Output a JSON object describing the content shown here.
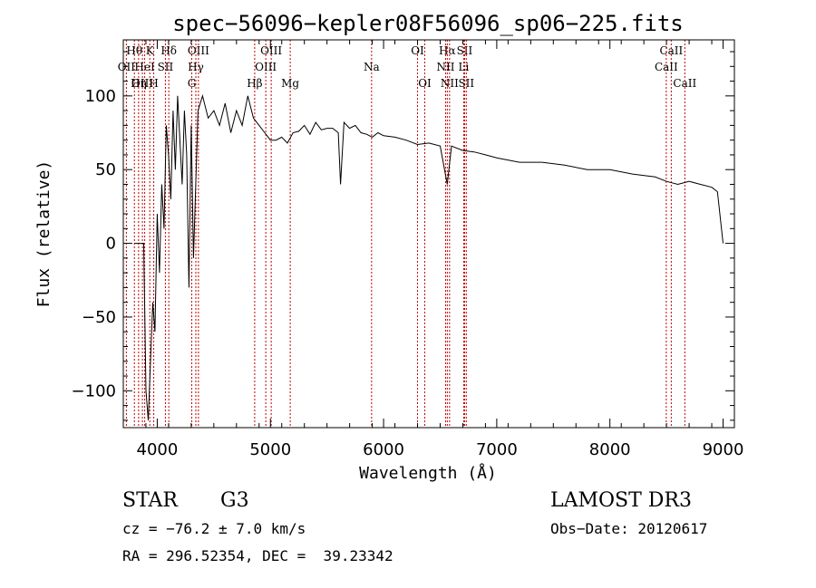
{
  "chart_data": {
    "type": "line",
    "title": "spec−56096−kepler08F56096_sp06−225.fits",
    "xlabel": "Wavelength (Å)",
    "ylabel": "Flux (relative)",
    "xlim": [
      3700,
      9100
    ],
    "ylim": [
      -125,
      138
    ],
    "xticks": [
      4000,
      5000,
      6000,
      7000,
      8000,
      9000
    ],
    "xtick_labels": [
      "4000",
      "5000",
      "6000",
      "7000",
      "8000",
      "9000"
    ],
    "yticks": [
      -100,
      -50,
      0,
      50,
      100
    ],
    "ytick_labels": [
      "−100",
      "−50",
      "0",
      "50",
      "100"
    ],
    "series": [
      {
        "name": "spectrum",
        "x": [
          3800,
          3850,
          3880,
          3900,
          3920,
          3940,
          3960,
          3980,
          4000,
          4020,
          4040,
          4060,
          4080,
          4100,
          4120,
          4140,
          4160,
          4180,
          4200,
          4220,
          4240,
          4260,
          4280,
          4300,
          4320,
          4340,
          4360,
          4400,
          4450,
          4500,
          4550,
          4600,
          4650,
          4700,
          4750,
          4800,
          4850,
          4900,
          4950,
          5000,
          5050,
          5100,
          5150,
          5200,
          5250,
          5300,
          5350,
          5400,
          5450,
          5500,
          5550,
          5600,
          5620,
          5650,
          5700,
          5750,
          5800,
          5850,
          5900,
          5950,
          6000,
          6100,
          6200,
          6300,
          6400,
          6500,
          6563,
          6600,
          6700,
          6800,
          6900,
          7000,
          7200,
          7400,
          7600,
          7800,
          8000,
          8200,
          8400,
          8500,
          8600,
          8700,
          8800,
          8900,
          8950,
          9000
        ],
        "values": [
          0,
          0,
          0,
          -100,
          -120,
          -80,
          -40,
          -60,
          20,
          -20,
          40,
          10,
          80,
          60,
          30,
          90,
          50,
          100,
          70,
          40,
          90,
          60,
          -30,
          80,
          -10,
          40,
          90,
          100,
          85,
          90,
          80,
          95,
          75,
          90,
          80,
          100,
          85,
          80,
          75,
          70,
          70,
          72,
          68,
          75,
          76,
          80,
          74,
          82,
          77,
          78,
          78,
          75,
          40,
          82,
          78,
          80,
          75,
          74,
          72,
          75,
          73,
          72,
          70,
          67,
          68,
          66,
          40,
          66,
          63,
          62,
          60,
          58,
          55,
          55,
          53,
          50,
          50,
          47,
          45,
          42,
          40,
          42,
          40,
          38,
          35,
          0
        ]
      }
    ],
    "lines": [
      {
        "label": "Hθ",
        "wavelength": 3798,
        "row": 1
      },
      {
        "label": "OII",
        "wavelength": 3727,
        "row": 2
      },
      {
        "label": "OIII",
        "wavelength": 3869,
        "row": 3
      },
      {
        "label": "K",
        "wavelength": 3934,
        "row": 1
      },
      {
        "label": "HeI",
        "wavelength": 3889,
        "row": 2
      },
      {
        "label": "Hη",
        "wavelength": 3835,
        "row": 3
      },
      {
        "label": "H",
        "wavelength": 3969,
        "row": 3
      },
      {
        "label": "SII",
        "wavelength": 4072,
        "row": 2
      },
      {
        "label": "Hδ",
        "wavelength": 4102,
        "row": 1
      },
      {
        "label": "OIII",
        "wavelength": 4364,
        "row": 1
      },
      {
        "label": "Hγ",
        "wavelength": 4341,
        "row": 2
      },
      {
        "label": "G",
        "wavelength": 4305,
        "row": 3
      },
      {
        "label": "OIII",
        "wavelength": 5007,
        "row": 1
      },
      {
        "label": "OIII",
        "wavelength": 4959,
        "row": 2
      },
      {
        "label": "Hβ",
        "wavelength": 4861,
        "row": 3
      },
      {
        "label": "Mg",
        "wavelength": 5175,
        "row": 3
      },
      {
        "label": "Na",
        "wavelength": 5894,
        "row": 2
      },
      {
        "label": "OI",
        "wavelength": 6300,
        "row": 1
      },
      {
        "label": "OI",
        "wavelength": 6364,
        "row": 3
      },
      {
        "label": "Hα",
        "wavelength": 6563,
        "row": 1
      },
      {
        "label": "SII",
        "wavelength": 6716,
        "row": 1
      },
      {
        "label": "NII",
        "wavelength": 6548,
        "row": 2
      },
      {
        "label": "Li",
        "wavelength": 6708,
        "row": 2
      },
      {
        "label": "NII",
        "wavelength": 6583,
        "row": 3
      },
      {
        "label": "SII",
        "wavelength": 6731,
        "row": 3
      },
      {
        "label": "CaII",
        "wavelength": 8542,
        "row": 1
      },
      {
        "label": "CaII",
        "wavelength": 8498,
        "row": 2
      },
      {
        "label": "CaII",
        "wavelength": 8662,
        "row": 3
      }
    ]
  },
  "info": {
    "object_class": "STAR",
    "subclass": "G3",
    "survey": "LAMOST DR3",
    "cz": "cz = −76.2 ± 7.0 km/s",
    "obs_date": "Obs−Date: 20120617",
    "coords": "RA = 296.52354, DEC =  39.23342"
  }
}
